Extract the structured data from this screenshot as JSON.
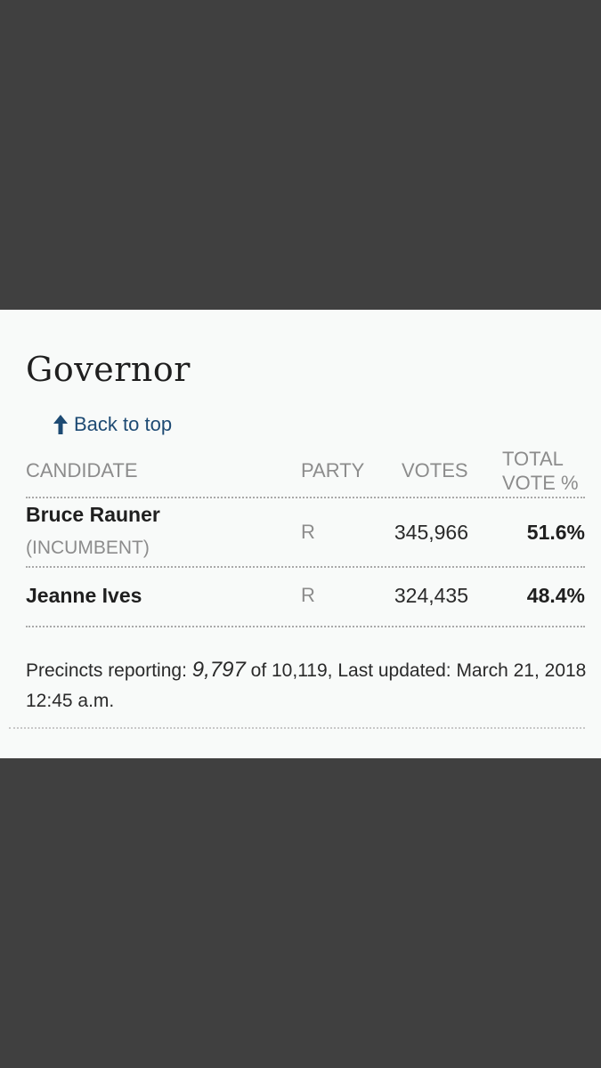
{
  "section": {
    "title": "Governor",
    "back_link": "Back to top"
  },
  "table": {
    "headers": {
      "candidate": "CANDIDATE",
      "party": "PARTY",
      "votes": "VOTES",
      "total_line1": "TOTAL",
      "total_line2": "VOTE %"
    },
    "rows": [
      {
        "name": "Bruce Rauner",
        "note": "(INCUMBENT)",
        "party": "R",
        "votes": "345,966",
        "percent": "51.6%"
      },
      {
        "name": "Jeanne Ives",
        "note": "",
        "party": "R",
        "votes": "324,435",
        "percent": "48.4%"
      }
    ]
  },
  "footer": {
    "precincts_label": "Precincts reporting: ",
    "precincts_reported": "9,797",
    "precincts_total_text": " of 10,119, Last updated: March 21, 2018 12:45 a.m."
  },
  "colors": {
    "background": "#404040",
    "card": "#f8faf9",
    "link": "#1d4a73"
  },
  "icons": {
    "back_link_icon": "arrow-up-icon"
  }
}
